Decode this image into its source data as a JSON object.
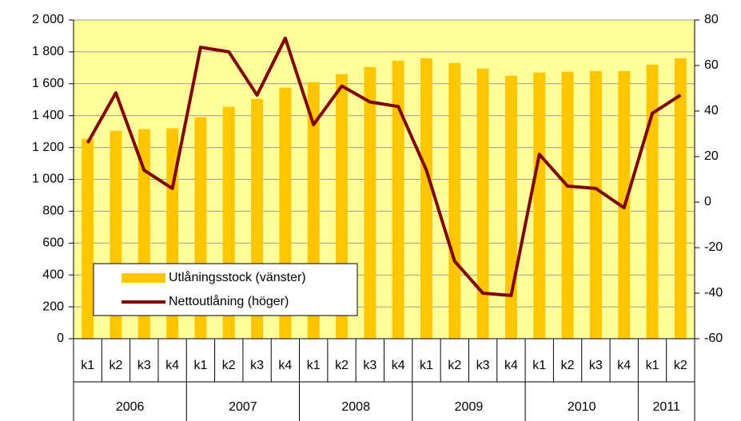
{
  "chart_data": {
    "type": "bar_line",
    "groups": [
      {
        "label": "2006",
        "categories": [
          "k1",
          "k2",
          "k3",
          "k4"
        ]
      },
      {
        "label": "2007",
        "categories": [
          "k1",
          "k2",
          "k3",
          "k4"
        ]
      },
      {
        "label": "2008",
        "categories": [
          "k1",
          "k2",
          "k3",
          "k4"
        ]
      },
      {
        "label": "2009",
        "categories": [
          "k1",
          "k2",
          "k3",
          "k4"
        ]
      },
      {
        "label": "2010",
        "categories": [
          "k1",
          "k2",
          "k3",
          "k4"
        ]
      },
      {
        "label": "2011",
        "categories": [
          "k1",
          "k2"
        ]
      }
    ],
    "series": [
      {
        "name": "Utlåningsstock (vänster)",
        "type": "bar",
        "color": "#ffc600",
        "values": [
          1255,
          1305,
          1315,
          1320,
          1390,
          1455,
          1505,
          1575,
          1610,
          1660,
          1705,
          1745,
          1760,
          1730,
          1695,
          1650,
          1670,
          1675,
          1680,
          1680,
          1720,
          1760
        ]
      },
      {
        "name": "Nettoutlåning (höger)",
        "type": "line",
        "axis": "y2",
        "color": "#800000",
        "values": [
          26,
          48,
          14,
          6,
          68,
          66,
          47,
          72,
          34,
          51,
          44,
          42,
          14,
          -26,
          -40,
          -41,
          21,
          7,
          6,
          -2.5,
          39,
          47
        ]
      }
    ],
    "ylim": [
      0,
      2000
    ],
    "yticks": [
      0,
      200,
      400,
      600,
      800,
      {
        "value": 1000,
        "label": "1 000"
      },
      {
        "value": 1200,
        "label": "1 200"
      },
      {
        "value": 1400,
        "label": "1 400"
      },
      {
        "value": 1600,
        "label": "1 600"
      },
      {
        "value": 1800,
        "label": "1 800"
      },
      {
        "value": 2000,
        "label": "2 000"
      }
    ],
    "y2lim": [
      -60,
      80
    ],
    "y2ticks": [
      -60,
      -40,
      -20,
      0,
      20,
      40,
      60,
      80
    ],
    "grid": true,
    "legend": "lower left",
    "background": "#ffff99"
  }
}
